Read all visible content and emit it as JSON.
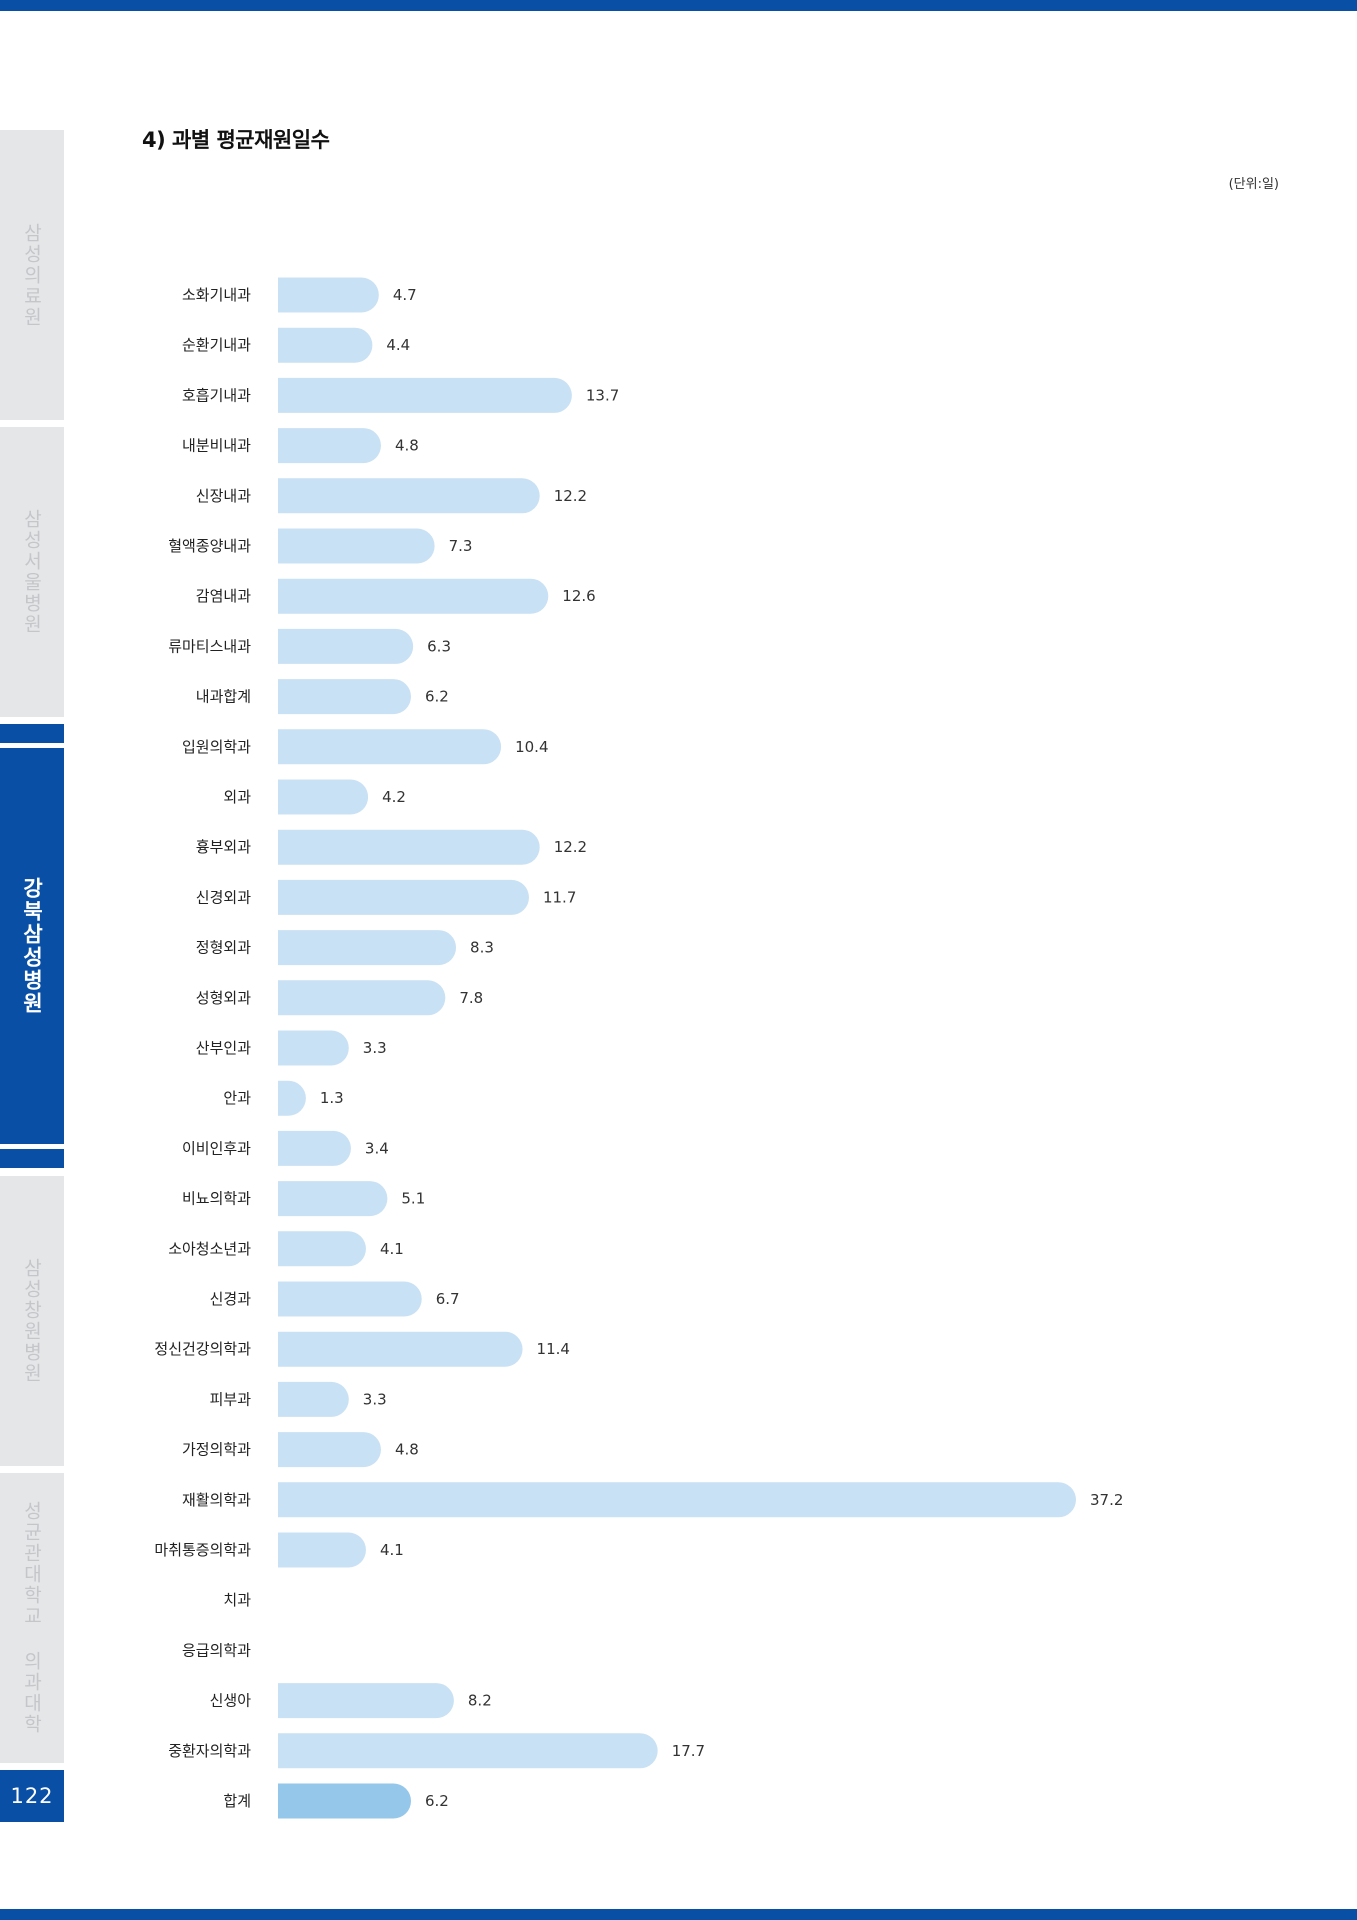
{
  "sidebar": {
    "tabs": [
      {
        "label": "삼성의료원",
        "active": false
      },
      {
        "label": "삼성서울병원",
        "active": false
      },
      {
        "label": "강북삼성병원",
        "active": true
      },
      {
        "label": "삼성창원병원",
        "active": false
      },
      {
        "label": "성균관대학교 의과대학",
        "active": false
      }
    ],
    "page_number": "122"
  },
  "section_title": "4) 과별 평균재원일수",
  "unit_note": "(단위:일)",
  "colors": {
    "bar": "#c9e1f4",
    "total_bar": "#94c7ea",
    "accent": "#0a4fa6",
    "tab_inactive": "#e5e6e8"
  },
  "chart_data": {
    "type": "bar",
    "orientation": "horizontal",
    "title": "4) 과별 평균재원일수",
    "unit": "(단위:일)",
    "categories": [
      "소화기내과",
      "순환기내과",
      "호흡기내과",
      "내분비내과",
      "신장내과",
      "혈액종양내과",
      "감염내과",
      "류마티스내과",
      "내과합계",
      "입원의학과",
      "외과",
      "흉부외과",
      "신경외과",
      "정형외과",
      "성형외과",
      "산부인과",
      "안과",
      "이비인후과",
      "비뇨의학과",
      "소아청소년과",
      "신경과",
      "정신건강의학과",
      "피부과",
      "가정의학과",
      "재활의학과",
      "마취통증의학과",
      "치과",
      "응급의학과",
      "신생아",
      "중환자의학과",
      "합계"
    ],
    "values": [
      4.7,
      4.4,
      13.7,
      4.8,
      12.2,
      7.3,
      12.6,
      6.3,
      6.2,
      10.4,
      4.2,
      12.2,
      11.7,
      8.3,
      7.8,
      3.3,
      1.3,
      3.4,
      5.1,
      4.1,
      6.7,
      11.4,
      3.3,
      4.8,
      37.2,
      4.1,
      null,
      null,
      8.2,
      17.7,
      6.2
    ],
    "value_labels": [
      "4.7",
      "4.4",
      "13.7",
      "4.8",
      "12.2",
      "7.3",
      "12.6",
      "6.3",
      "6.2",
      "10.4",
      "4.2",
      "12.2",
      "11.7",
      "8.3",
      "7.8",
      "3.3",
      "1.3",
      "3.4",
      "5.1",
      "4.1",
      "6.7",
      "11.4",
      "3.3",
      "4.8",
      "37.2",
      "4.1",
      "",
      "",
      "8.2",
      "17.7",
      "6.2"
    ],
    "highlight_index": 30,
    "xlim": [
      0,
      37.2
    ],
    "grid": false,
    "legend": "none"
  }
}
